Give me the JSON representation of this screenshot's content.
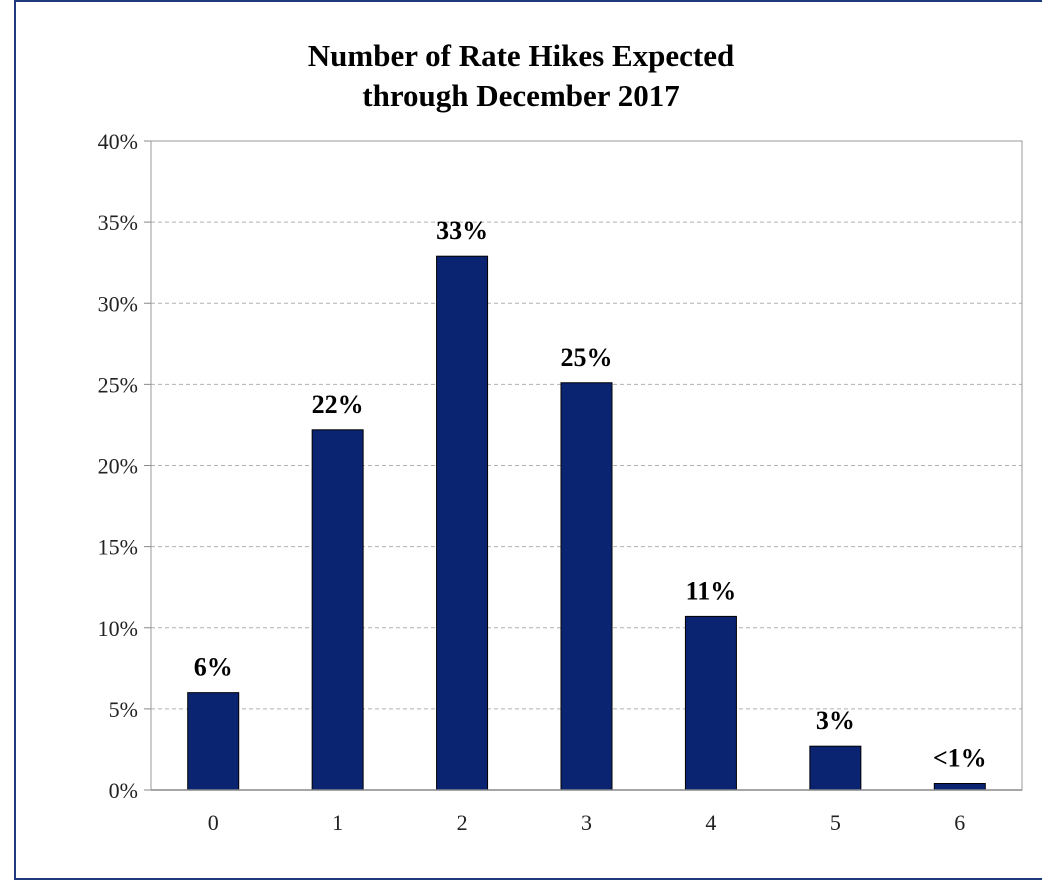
{
  "chart_data": {
    "type": "bar",
    "title_lines": [
      "Number of Rate Hikes Expected",
      "through December 2017"
    ],
    "categories": [
      "0",
      "1",
      "2",
      "3",
      "4",
      "5",
      "6"
    ],
    "values": [
      6,
      22.2,
      32.9,
      25.1,
      10.7,
      2.7,
      0.4
    ],
    "data_labels": [
      "6%",
      "22%",
      "33%",
      "25%",
      "11%",
      "3%",
      "<1%"
    ],
    "y_ticks": [
      0,
      5,
      10,
      15,
      20,
      25,
      30,
      35,
      40
    ],
    "y_tick_labels": [
      "0%",
      "5%",
      "10%",
      "15%",
      "20%",
      "25%",
      "30%",
      "35%",
      "40%"
    ],
    "ylim": [
      0,
      40
    ],
    "xlabel": "",
    "ylabel": "",
    "grid": true,
    "legend": "none",
    "bar_color": "#0a2472",
    "border_color": "#1f3a7a"
  }
}
